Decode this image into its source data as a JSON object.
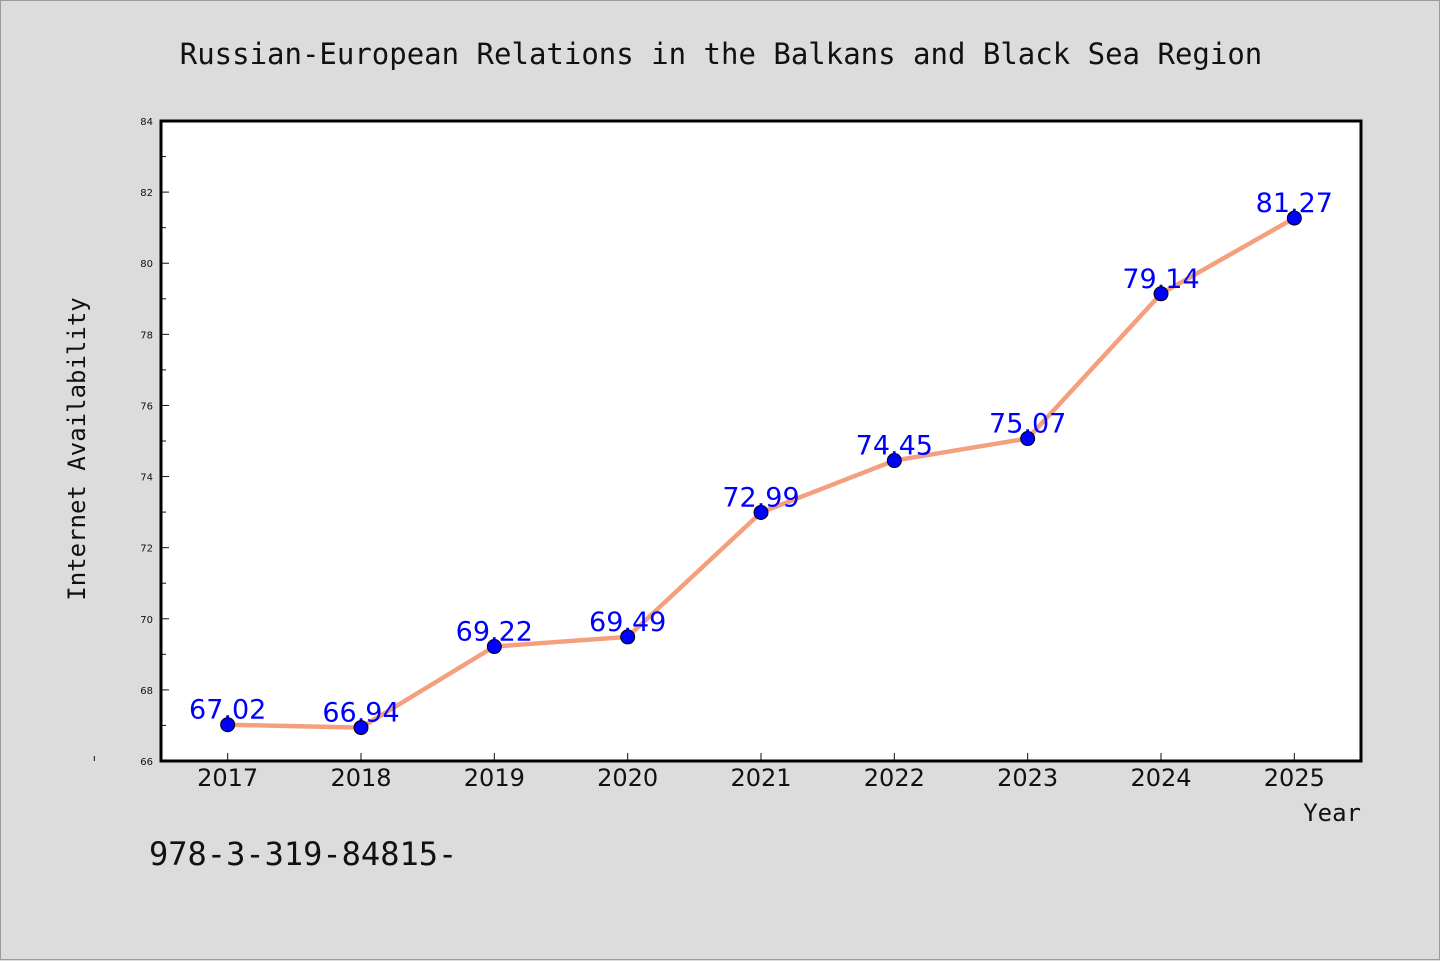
{
  "footer_text": "978-3-319-84815-",
  "colors": {
    "background": "#dcdcdc",
    "plot_background": "#ffffff",
    "line": "#f4a07e",
    "marker": "#0000ff",
    "data_label": "#0000ff"
  },
  "chart_data": {
    "type": "line",
    "title": "Russian-European Relations in the Balkans and Black Sea Region",
    "xlabel": "Year",
    "ylabel": "Internet Availability",
    "categories": [
      "2017",
      "2018",
      "2019",
      "2020",
      "2021",
      "2022",
      "2023",
      "2024",
      "2025"
    ],
    "series": [
      {
        "values": [
          67.02,
          66.94,
          69.22,
          69.49,
          72.99,
          74.45,
          75.07,
          79.14,
          81.27
        ],
        "labels": [
          "67.02",
          "66.94",
          "69.22",
          "69.49",
          "72.99",
          "74.45",
          "75.07",
          "79.14",
          "81.27"
        ]
      }
    ],
    "ylim": [
      66,
      84
    ],
    "yticks": [
      "66",
      "68",
      "70",
      "72",
      "74",
      "76",
      "78",
      "80",
      "82",
      "84"
    ],
    "x_range": [
      2016.5,
      2025.5
    ],
    "grid": false,
    "legend": "none"
  }
}
